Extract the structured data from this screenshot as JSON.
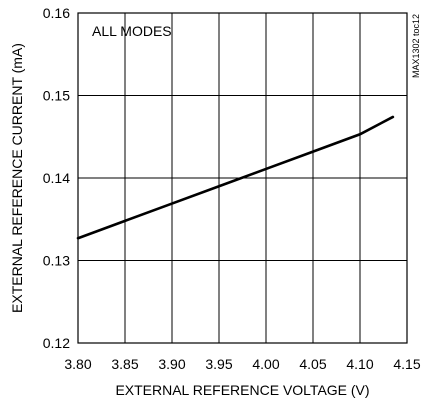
{
  "chart_data": {
    "type": "line",
    "xlabel": "EXTERNAL REFERENCE VOLTAGE (V)",
    "ylabel": "EXTERNAL REFERENCE CURRENT (mA)",
    "xlim": [
      3.8,
      4.15
    ],
    "ylim": [
      0.12,
      0.16
    ],
    "x_ticks": [
      3.8,
      3.85,
      3.9,
      3.95,
      4.0,
      4.05,
      4.1,
      4.15
    ],
    "x_tick_labels": [
      "3.80",
      "3.85",
      "3.90",
      "3.95",
      "4.00",
      "4.05",
      "4.10",
      "4.15"
    ],
    "y_ticks": [
      0.12,
      0.13,
      0.14,
      0.15,
      0.16
    ],
    "y_tick_labels": [
      "0.12",
      "0.13",
      "0.14",
      "0.15",
      "0.16"
    ],
    "grid": true,
    "annotation": "ALL MODES",
    "figure_id": "MAX1302 toc12",
    "series": [
      {
        "x": [
          3.8,
          3.85,
          3.9,
          3.95,
          4.0,
          4.05,
          4.1,
          4.135
        ],
        "y": [
          0.1327,
          0.1348,
          0.1369,
          0.139,
          0.1411,
          0.1432,
          0.1453,
          0.1474
        ],
        "color": "#000000"
      }
    ]
  }
}
